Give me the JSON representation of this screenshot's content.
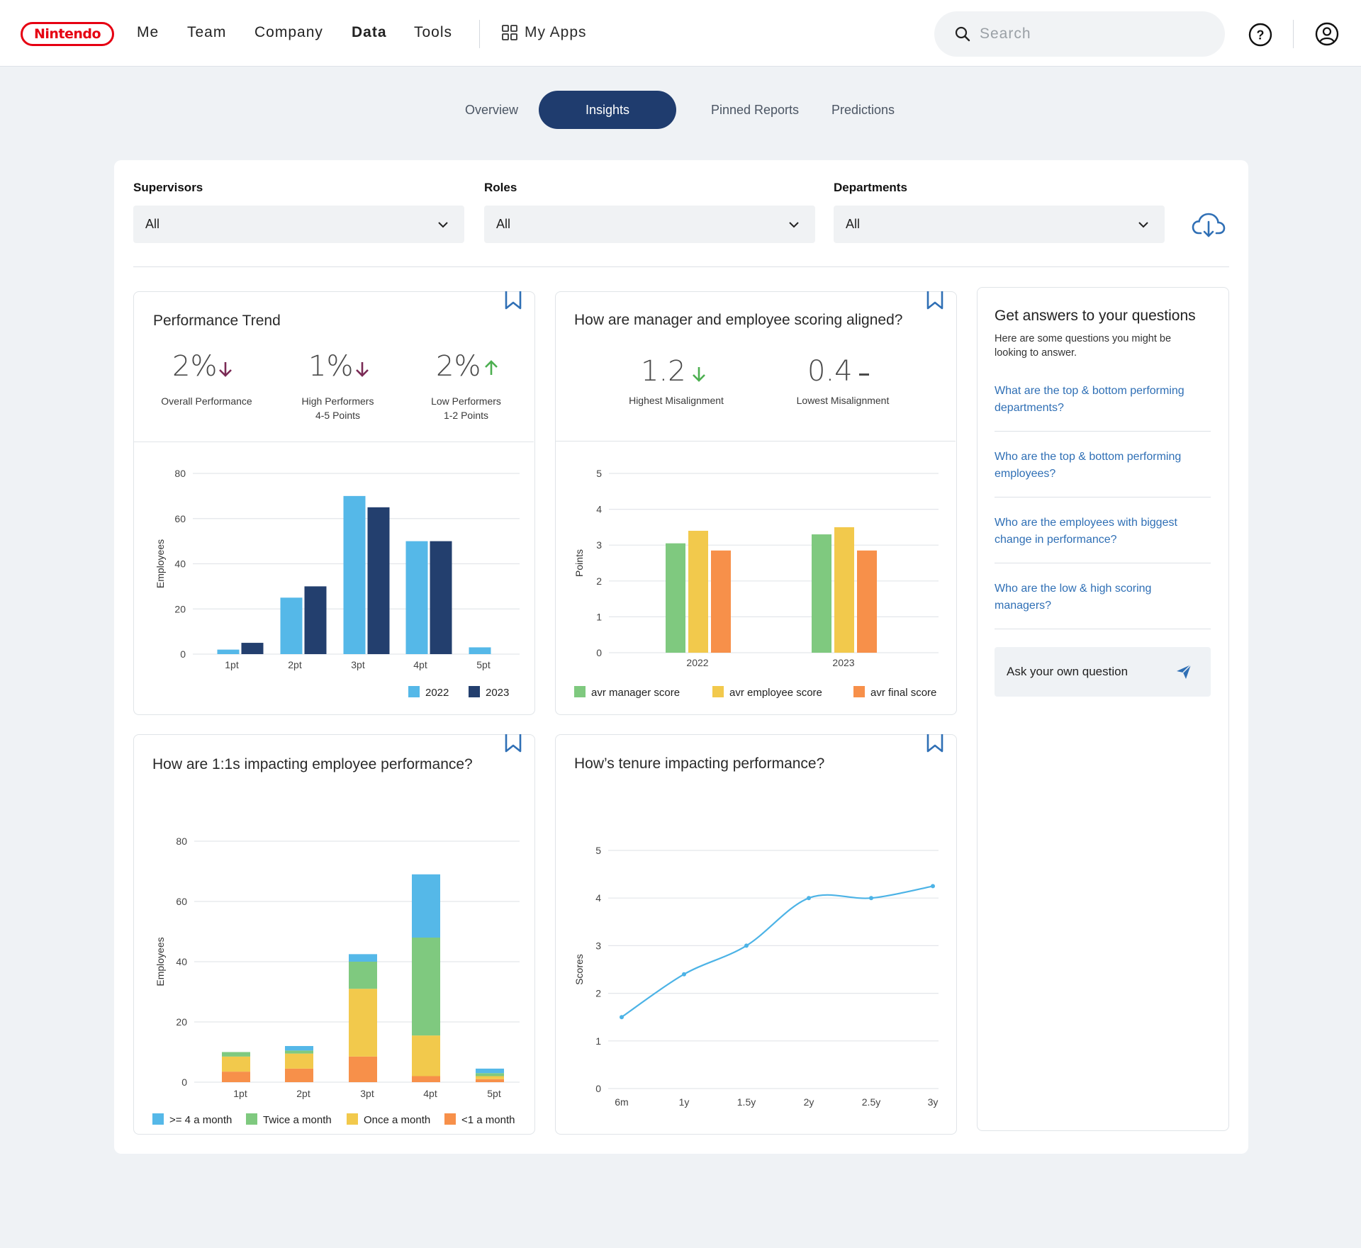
{
  "header": {
    "logo_text": "Nintendo",
    "nav": [
      "Me",
      "Team",
      "Company",
      "Data",
      "Tools"
    ],
    "active_nav": "Data",
    "my_apps": "My Apps",
    "search_placeholder": "Search"
  },
  "tabs": [
    "Overview",
    "Insights",
    "Pinned Reports",
    "Predictions"
  ],
  "active_tab": "Insights",
  "filters": [
    {
      "label": "Supervisors",
      "value": "All"
    },
    {
      "label": "Roles",
      "value": "All"
    },
    {
      "label": "Departments",
      "value": "All"
    }
  ],
  "performance_trend": {
    "title": "Performance Trend",
    "stats": [
      {
        "value": "2%",
        "direction": "down",
        "label": "Overall Performance",
        "sublabel": ""
      },
      {
        "value": "1%",
        "direction": "down",
        "label": "High Performers",
        "sublabel": "4-5 Points"
      },
      {
        "value": "2%",
        "direction": "up",
        "label": "Low Performers",
        "sublabel": "1-2 Points"
      }
    ]
  },
  "alignment": {
    "title": "How are manager and employee scoring aligned?",
    "stats": [
      {
        "value": "1.2",
        "direction": "down",
        "label": "Highest Misalignment"
      },
      {
        "value": "0.4",
        "direction": "flat",
        "label": "Lowest Misalignment"
      }
    ]
  },
  "one_on_ones": {
    "title": "How are 1:1s impacting employee performance?"
  },
  "tenure": {
    "title": "How’s tenure impacting performance?"
  },
  "qa": {
    "title": "Get answers to your questions",
    "subtitle": "Here are some questions you might be looking to answer.",
    "questions": [
      "What are the top & bottom performing departments?",
      "Who are the top & bottom performing employees?",
      "Who are the employees with biggest change in performance?",
      "Who are the low & high scoring managers?"
    ],
    "ask_label": "Ask your own question"
  },
  "colors": {
    "navy": "#1f3c6e",
    "light_blue": "#55b8e8",
    "dark_blue": "#233f6e",
    "green": "#7fc97f",
    "yellow": "#f2c94c",
    "orange": "#f7904a",
    "down_arrow": "#7a2a55",
    "up_arrow": "#4caf50",
    "link": "#2f6fb5"
  },
  "chart_data": [
    {
      "type": "bar",
      "categories": [
        "1pt",
        "2pt",
        "3pt",
        "4pt",
        "5pt"
      ],
      "series": [
        {
          "name": "2022",
          "values": [
            2,
            25,
            70,
            50,
            3
          ]
        },
        {
          "name": "2023",
          "values": [
            5,
            30,
            65,
            50,
            0
          ]
        }
      ],
      "ylabel": "Employees",
      "ylim": [
        0,
        80
      ],
      "yticks": [
        0,
        20,
        40,
        60,
        80
      ],
      "legend": "bottom-right"
    },
    {
      "type": "bar",
      "categories": [
        "2022",
        "2023"
      ],
      "series": [
        {
          "name": "avr manager score",
          "values": [
            3.05,
            3.3
          ]
        },
        {
          "name": "avr employee score",
          "values": [
            3.4,
            3.5
          ]
        },
        {
          "name": "avr final score",
          "values": [
            2.85,
            2.85
          ]
        }
      ],
      "ylabel": "Points",
      "ylim": [
        0,
        5
      ],
      "yticks": [
        0,
        1,
        2,
        3,
        4,
        5
      ],
      "legend": "bottom"
    },
    {
      "type": "bar",
      "stacked": true,
      "categories": [
        "1pt",
        "2pt",
        "3pt",
        "4pt",
        "5pt"
      ],
      "series": [
        {
          "name": "<1 a month",
          "values": [
            3.5,
            4.5,
            8.5,
            2,
            1
          ]
        },
        {
          "name": "Once a month",
          "values": [
            5,
            5,
            22.5,
            13.5,
            1
          ]
        },
        {
          "name": "Twice a month",
          "values": [
            1.5,
            1,
            9,
            32.5,
            1
          ]
        },
        {
          "name": ">= 4 a month",
          "values": [
            0,
            1.5,
            2.5,
            21,
            1.5
          ]
        }
      ],
      "ylabel": "Employees",
      "ylim": [
        0,
        80
      ],
      "yticks": [
        0,
        20,
        40,
        60,
        80
      ],
      "legend": "bottom"
    },
    {
      "type": "line",
      "x": [
        "6m",
        "1y",
        "1.5y",
        "2y",
        "2.5y",
        "3y"
      ],
      "values": [
        1.5,
        2.4,
        3.0,
        4.0,
        4.0,
        4.25
      ],
      "ylabel": "Scores",
      "ylim": [
        0,
        5
      ],
      "yticks": [
        0,
        1,
        2,
        3,
        4,
        5
      ]
    }
  ]
}
